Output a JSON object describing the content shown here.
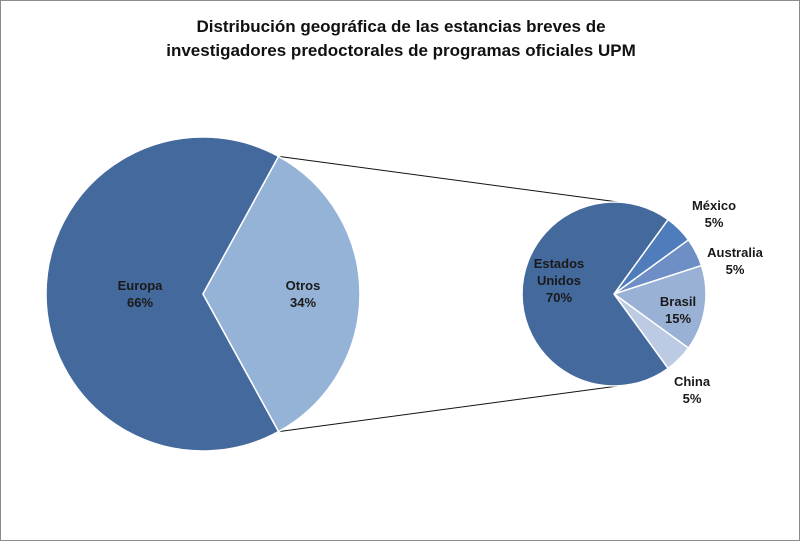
{
  "chart_data": {
    "type": "pie-of-pie",
    "title_lines": [
      "Distribución geográfica de las estancias breves de",
      "investigadores predoctorales de programas oficiales UPM"
    ],
    "primary": [
      {
        "label": "Europa",
        "value": 66,
        "value_label": "66%",
        "color": "#44699d"
      },
      {
        "label": "Otros",
        "value": 34,
        "value_label": "34%",
        "color": "#95b3d7"
      }
    ],
    "secondary": [
      {
        "label": "Estados Unidos",
        "label_lines": [
          "Estados",
          "Unidos"
        ],
        "value": 70,
        "value_label": "70%",
        "color": "#44699d"
      },
      {
        "label": "México",
        "label_lines": [
          "México"
        ],
        "value": 5,
        "value_label": "5%",
        "color": "#4f7cba"
      },
      {
        "label": "Australia",
        "label_lines": [
          "Australia"
        ],
        "value": 5,
        "value_label": "5%",
        "color": "#6d8fc6"
      },
      {
        "label": "Brasil",
        "label_lines": [
          "Brasil"
        ],
        "value": 15,
        "value_label": "15%",
        "color": "#9ab1d6"
      },
      {
        "label": "China",
        "label_lines": [
          "China"
        ],
        "value": 5,
        "value_label": "5%",
        "color": "#bccbe3"
      }
    ]
  }
}
